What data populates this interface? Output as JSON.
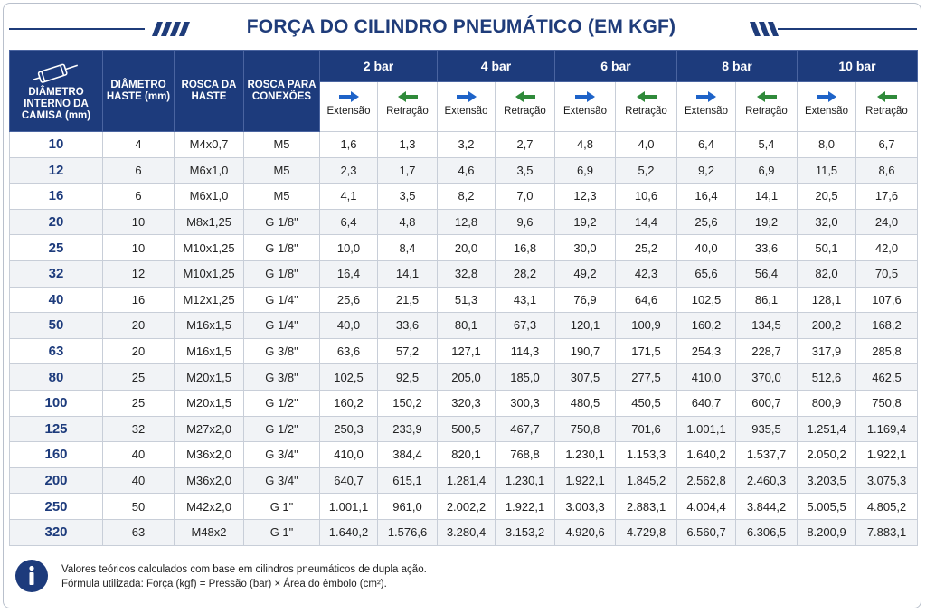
{
  "title": "FORÇA DO CILINDRO PNEUMÁTICO (EM KGF)",
  "headers": {
    "bore": "DIÂMETRO INTERNO DA CAMISA (mm)",
    "rod": "DIÂMETRO HASTE (mm)",
    "thread_rod": "ROSCA DA HASTE",
    "thread_conn": "ROSCA PARA CONEXÕES",
    "pressures": [
      "2 bar",
      "4 bar",
      "6 bar",
      "8 bar",
      "10 bar"
    ],
    "extension": "Extensão",
    "retraction": "Retração"
  },
  "colors": {
    "header_bg": "#1d3b7c",
    "extension_arrow": "#1e63c8",
    "retraction_arrow": "#2f8a3a",
    "bore_text": "#1d3b7c"
  },
  "icons": {
    "cylinder": "pneumatic-cylinder-icon",
    "info": "info-icon"
  },
  "rows": [
    {
      "bore": "10",
      "rod": "4",
      "thread_rod": "M4x0,7",
      "thread_conn": "M5",
      "forces": [
        "1,6",
        "1,3",
        "3,2",
        "2,7",
        "4,8",
        "4,0",
        "6,4",
        "5,4",
        "8,0",
        "6,7"
      ]
    },
    {
      "bore": "12",
      "rod": "6",
      "thread_rod": "M6x1,0",
      "thread_conn": "M5",
      "forces": [
        "2,3",
        "1,7",
        "4,6",
        "3,5",
        "6,9",
        "5,2",
        "9,2",
        "6,9",
        "11,5",
        "8,6"
      ]
    },
    {
      "bore": "16",
      "rod": "6",
      "thread_rod": "M6x1,0",
      "thread_conn": "M5",
      "forces": [
        "4,1",
        "3,5",
        "8,2",
        "7,0",
        "12,3",
        "10,6",
        "16,4",
        "14,1",
        "20,5",
        "17,6"
      ]
    },
    {
      "bore": "20",
      "rod": "10",
      "thread_rod": "M8x1,25",
      "thread_conn": "G 1/8\"",
      "forces": [
        "6,4",
        "4,8",
        "12,8",
        "9,6",
        "19,2",
        "14,4",
        "25,6",
        "19,2",
        "32,0",
        "24,0"
      ]
    },
    {
      "bore": "25",
      "rod": "10",
      "thread_rod": "M10x1,25",
      "thread_conn": "G 1/8\"",
      "forces": [
        "10,0",
        "8,4",
        "20,0",
        "16,8",
        "30,0",
        "25,2",
        "40,0",
        "33,6",
        "50,1",
        "42,0"
      ]
    },
    {
      "bore": "32",
      "rod": "12",
      "thread_rod": "M10x1,25",
      "thread_conn": "G 1/8\"",
      "forces": [
        "16,4",
        "14,1",
        "32,8",
        "28,2",
        "49,2",
        "42,3",
        "65,6",
        "56,4",
        "82,0",
        "70,5"
      ]
    },
    {
      "bore": "40",
      "rod": "16",
      "thread_rod": "M12x1,25",
      "thread_conn": "G 1/4\"",
      "forces": [
        "25,6",
        "21,5",
        "51,3",
        "43,1",
        "76,9",
        "64,6",
        "102,5",
        "86,1",
        "128,1",
        "107,6"
      ]
    },
    {
      "bore": "50",
      "rod": "20",
      "thread_rod": "M16x1,5",
      "thread_conn": "G 1/4\"",
      "forces": [
        "40,0",
        "33,6",
        "80,1",
        "67,3",
        "120,1",
        "100,9",
        "160,2",
        "134,5",
        "200,2",
        "168,2"
      ]
    },
    {
      "bore": "63",
      "rod": "20",
      "thread_rod": "M16x1,5",
      "thread_conn": "G 3/8\"",
      "forces": [
        "63,6",
        "57,2",
        "127,1",
        "114,3",
        "190,7",
        "171,5",
        "254,3",
        "228,7",
        "317,9",
        "285,8"
      ]
    },
    {
      "bore": "80",
      "rod": "25",
      "thread_rod": "M20x1,5",
      "thread_conn": "G 3/8\"",
      "forces": [
        "102,5",
        "92,5",
        "205,0",
        "185,0",
        "307,5",
        "277,5",
        "410,0",
        "370,0",
        "512,6",
        "462,5"
      ]
    },
    {
      "bore": "100",
      "rod": "25",
      "thread_rod": "M20x1,5",
      "thread_conn": "G 1/2\"",
      "forces": [
        "160,2",
        "150,2",
        "320,3",
        "300,3",
        "480,5",
        "450,5",
        "640,7",
        "600,7",
        "800,9",
        "750,8"
      ]
    },
    {
      "bore": "125",
      "rod": "32",
      "thread_rod": "M27x2,0",
      "thread_conn": "G 1/2\"",
      "forces": [
        "250,3",
        "233,9",
        "500,5",
        "467,7",
        "750,8",
        "701,6",
        "1.001,1",
        "935,5",
        "1.251,4",
        "1.169,4"
      ]
    },
    {
      "bore": "160",
      "rod": "40",
      "thread_rod": "M36x2,0",
      "thread_conn": "G 3/4\"",
      "forces": [
        "410,0",
        "384,4",
        "820,1",
        "768,8",
        "1.230,1",
        "1.153,3",
        "1.640,2",
        "1.537,7",
        "2.050,2",
        "1.922,1"
      ]
    },
    {
      "bore": "200",
      "rod": "40",
      "thread_rod": "M36x2,0",
      "thread_conn": "G 3/4\"",
      "forces": [
        "640,7",
        "615,1",
        "1.281,4",
        "1.230,1",
        "1.922,1",
        "1.845,2",
        "2.562,8",
        "2.460,3",
        "3.203,5",
        "3.075,3"
      ]
    },
    {
      "bore": "250",
      "rod": "50",
      "thread_rod": "M42x2,0",
      "thread_conn": "G 1\"",
      "forces": [
        "1.001,1",
        "961,0",
        "2.002,2",
        "1.922,1",
        "3.003,3",
        "2.883,1",
        "4.004,4",
        "3.844,2",
        "5.005,5",
        "4.805,2"
      ]
    },
    {
      "bore": "320",
      "rod": "63",
      "thread_rod": "M48x2",
      "thread_conn": "G 1\"",
      "forces": [
        "1.640,2",
        "1.576,6",
        "3.280,4",
        "3.153,2",
        "4.920,6",
        "4.729,8",
        "6.560,7",
        "6.306,5",
        "8.200,9",
        "7.883,1"
      ]
    }
  ],
  "footer": {
    "line1": "Valores teóricos calculados com base em cilindros pneumáticos de dupla ação.",
    "line2": "Fórmula utilizada: Força (kgf) = Pressão (bar) × Área do êmbolo (cm²)."
  }
}
